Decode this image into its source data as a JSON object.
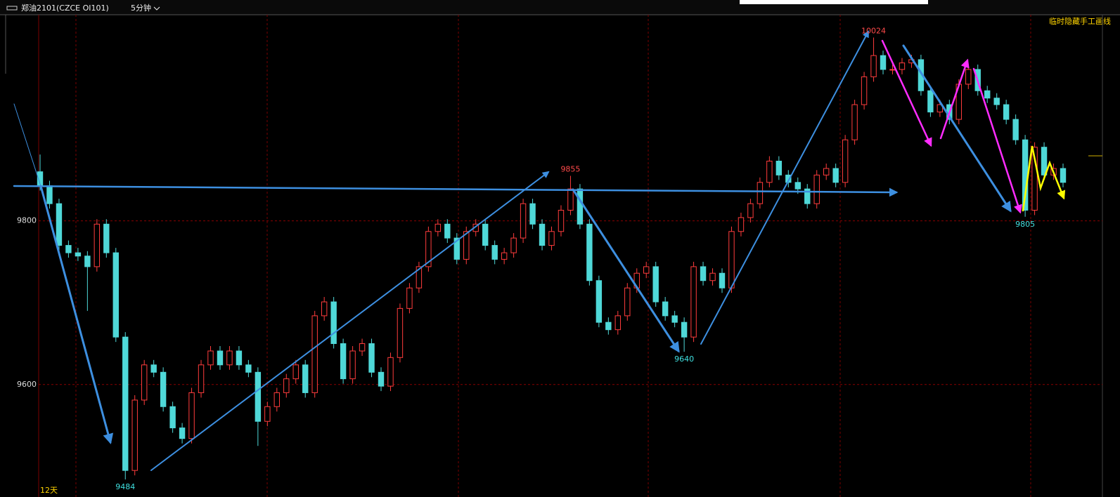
{
  "header": {
    "symbol": "郑油2101(CZCE OI101)",
    "period": "5分钟",
    "hide_button": "临时隐藏手工画线"
  },
  "chart_data": {
    "type": "candlestick",
    "open": [
      9860,
      9843,
      9821,
      9770,
      9761,
      9757,
      9744,
      9796,
      9761,
      9658,
      9495,
      9581,
      9624,
      9615,
      9573,
      9547,
      9534,
      9590,
      9624,
      9641,
      9624,
      9641,
      9624,
      9615,
      9555,
      9573,
      9590,
      9607,
      9624,
      9590,
      9684,
      9701,
      9650,
      9607,
      9641,
      9650,
      9615,
      9598,
      9633,
      9693,
      9718,
      9744,
      9787,
      9796,
      9779,
      9753,
      9787,
      9796,
      9770,
      9753,
      9761,
      9779,
      9821,
      9796,
      9770,
      9787,
      9813,
      9839,
      9796,
      9727,
      9676,
      9667,
      9684,
      9718,
      9736,
      9744,
      9701,
      9684,
      9676,
      9658,
      9744,
      9727,
      9736,
      9718,
      9787,
      9804,
      9821,
      9847,
      9873,
      9856,
      9847,
      9839,
      9821,
      9856,
      9864,
      9847,
      9899,
      9942,
      9976,
      10002,
      9985,
      9985,
      9993,
      9997,
      9959,
      9933,
      9942,
      9924,
      9967,
      9985,
      9959,
      9950,
      9942,
      9924,
      9899,
      9813,
      9890,
      9856,
      9864
    ],
    "high": [
      9881,
      9849,
      9827,
      9776,
      9767,
      9763,
      9802,
      9802,
      9767,
      9664,
      9587,
      9630,
      9630,
      9621,
      9579,
      9553,
      9596,
      9630,
      9647,
      9647,
      9647,
      9647,
      9630,
      9621,
      9579,
      9596,
      9613,
      9630,
      9630,
      9690,
      9707,
      9707,
      9656,
      9647,
      9656,
      9656,
      9621,
      9639,
      9699,
      9724,
      9750,
      9793,
      9802,
      9802,
      9785,
      9793,
      9802,
      9802,
      9776,
      9767,
      9785,
      9827,
      9827,
      9802,
      9793,
      9819,
      9855,
      9845,
      9802,
      9733,
      9682,
      9690,
      9724,
      9742,
      9750,
      9750,
      9707,
      9690,
      9682,
      9750,
      9750,
      9742,
      9742,
      9793,
      9810,
      9827,
      9853,
      9879,
      9879,
      9862,
      9853,
      9845,
      9862,
      9870,
      9870,
      9905,
      9948,
      9982,
      10024,
      10008,
      9991,
      9999,
      10003,
      10003,
      9965,
      9948,
      9948,
      9973,
      9991,
      9991,
      9965,
      9956,
      9948,
      9930,
      9905,
      9896,
      9896,
      9870,
      9870
    ],
    "low": [
      9837,
      9815,
      9764,
      9755,
      9751,
      9690,
      9738,
      9755,
      9652,
      9484,
      9489,
      9575,
      9609,
      9567,
      9541,
      9528,
      9528,
      9584,
      9618,
      9618,
      9618,
      9618,
      9609,
      9525,
      9549,
      9567,
      9584,
      9601,
      9584,
      9584,
      9678,
      9644,
      9601,
      9601,
      9635,
      9609,
      9592,
      9592,
      9627,
      9687,
      9712,
      9738,
      9781,
      9773,
      9747,
      9747,
      9781,
      9764,
      9747,
      9747,
      9755,
      9773,
      9790,
      9764,
      9764,
      9781,
      9807,
      9790,
      9721,
      9670,
      9661,
      9661,
      9678,
      9712,
      9730,
      9695,
      9678,
      9670,
      9640,
      9652,
      9721,
      9721,
      9712,
      9712,
      9781,
      9798,
      9815,
      9841,
      9850,
      9841,
      9833,
      9815,
      9815,
      9850,
      9841,
      9841,
      9893,
      9936,
      9970,
      9979,
      9979,
      9979,
      9987,
      9953,
      9927,
      9927,
      9918,
      9918,
      9961,
      9953,
      9944,
      9936,
      9918,
      9893,
      9805,
      9807,
      9850,
      9850,
      9841
    ],
    "close": [
      9843,
      9821,
      9770,
      9761,
      9757,
      9744,
      9796,
      9761,
      9658,
      9495,
      9581,
      9624,
      9615,
      9573,
      9547,
      9534,
      9590,
      9624,
      9641,
      9624,
      9641,
      9624,
      9615,
      9555,
      9573,
      9590,
      9607,
      9624,
      9590,
      9684,
      9701,
      9650,
      9607,
      9641,
      9650,
      9615,
      9598,
      9633,
      9693,
      9718,
      9744,
      9787,
      9796,
      9779,
      9753,
      9787,
      9796,
      9770,
      9753,
      9761,
      9779,
      9821,
      9796,
      9770,
      9787,
      9813,
      9839,
      9796,
      9727,
      9676,
      9667,
      9684,
      9718,
      9736,
      9744,
      9701,
      9684,
      9676,
      9658,
      9744,
      9727,
      9736,
      9718,
      9787,
      9804,
      9821,
      9847,
      9873,
      9856,
      9847,
      9839,
      9821,
      9856,
      9864,
      9847,
      9899,
      9942,
      9976,
      10002,
      9985,
      9985,
      9993,
      9997,
      9959,
      9933,
      9942,
      9924,
      9967,
      9985,
      9959,
      9950,
      9942,
      9924,
      9899,
      9813,
      9890,
      9856,
      9864,
      9847
    ],
    "up_color": "#ff3c3c",
    "down_color": "#4fd8d8",
    "ylim": [
      9472,
      10051
    ],
    "yticks": [
      9600,
      9800
    ],
    "grid": true,
    "extremes": [
      9484,
      9855,
      9640,
      10024,
      9805
    ],
    "period_label": "12天"
  }
}
